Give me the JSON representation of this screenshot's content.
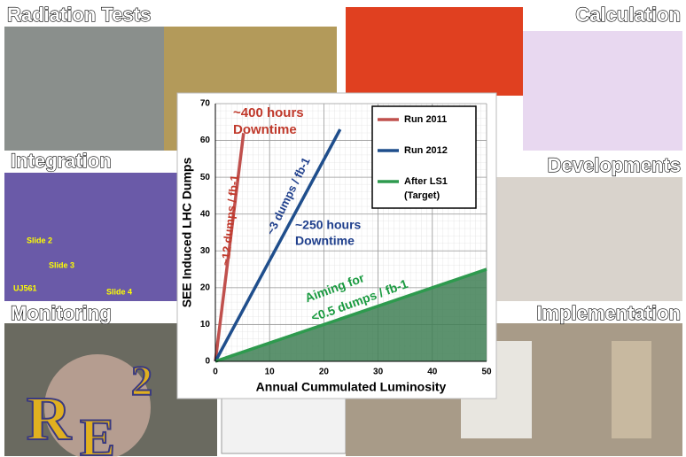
{
  "panels": [
    "Radiation Tests",
    "Calculation",
    "Integration",
    "Developments",
    "Monitoring",
    "Implementation"
  ],
  "photo_labels": [
    "Slide 2",
    "Slide 3",
    "Slide 4",
    "UJ561"
  ],
  "logo": [
    "R",
    "2",
    "E"
  ],
  "chart_data": {
    "type": "line",
    "xlabel": "Annual Cummulated Luminosity",
    "ylabel": "SEE Induced LHC Dumps",
    "xlim": [
      0,
      50
    ],
    "xticks": [
      0,
      10,
      20,
      30,
      40,
      50
    ],
    "ylim": [
      0,
      70
    ],
    "yticks": [
      0,
      10,
      20,
      30,
      40,
      50,
      60,
      70
    ],
    "grid": true,
    "legend": "upper right",
    "series": [
      {
        "name": "Run 2011",
        "color": "#c0504d",
        "x": [
          0,
          5.2
        ],
        "values": [
          0,
          62
        ]
      },
      {
        "name": "Run 2012",
        "color": "#1f4e8c",
        "x": [
          0,
          23
        ],
        "values": [
          0,
          63
        ]
      },
      {
        "name": "After LS1 (Target)",
        "color": "#2e9a4e",
        "area": true,
        "x": [
          0,
          50
        ],
        "values": [
          0,
          25
        ]
      }
    ],
    "annotations": [
      "~400 hours",
      "Downtime",
      "~12 dumps / fb-1",
      "~3 dumps / fb-1",
      "~250 hours",
      "Downtime",
      "Aiming for",
      "<0.5 dumps / fb-1"
    ]
  }
}
